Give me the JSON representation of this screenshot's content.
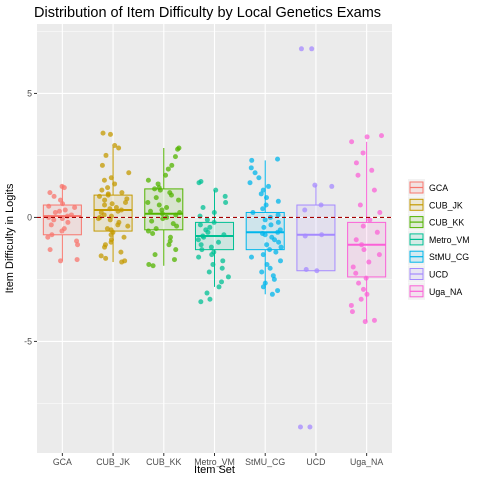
{
  "chart_data": {
    "type": "box",
    "title": "Distribution of Item Difficulty by Local Genetics Exams",
    "xlabel": "Item Set",
    "ylabel": "Item Difficulty in Logits",
    "ylim": [
      -9.5,
      7.8
    ],
    "yticks": [
      -5,
      0,
      5
    ],
    "reference_line": {
      "y": 0,
      "color": "#a50000",
      "style": "dashed"
    },
    "grid": true,
    "legend_position": "right",
    "categories": [
      "GCA",
      "CUB_JK",
      "CUB_KK",
      "Metro_VM",
      "StMU_CG",
      "UCD",
      "Uga_NA"
    ],
    "series": [
      {
        "name": "GCA",
        "color": "#F8766D",
        "box": {
          "min": -1.75,
          "q1": -0.7,
          "median": 0.05,
          "q3": 0.5,
          "max": 1.3
        },
        "points": [
          1.25,
          1.2,
          1.0,
          0.85,
          0.7,
          0.55,
          0.45,
          0.4,
          0.3,
          0.25,
          0.2,
          0.1,
          0.05,
          0.0,
          -0.05,
          -0.1,
          -0.2,
          -0.3,
          -0.45,
          -0.55,
          -0.7,
          -0.8,
          -0.95,
          -1.1,
          -1.3,
          -1.75,
          -1.7
        ]
      },
      {
        "name": "CUB_JK",
        "color": "#C49A00",
        "box": {
          "min": -1.8,
          "q1": -0.55,
          "median": 0.3,
          "q3": 0.9,
          "max": 2.85
        },
        "points": [
          3.4,
          3.35,
          2.9,
          2.8,
          2.5,
          2.1,
          1.8,
          1.6,
          1.5,
          1.35,
          1.2,
          1.1,
          1.0,
          0.95,
          0.9,
          0.85,
          0.75,
          0.7,
          0.6,
          0.55,
          0.5,
          0.4,
          0.35,
          0.3,
          0.25,
          0.2,
          0.1,
          0.05,
          0.0,
          -0.05,
          -0.1,
          -0.2,
          -0.3,
          -0.35,
          -0.45,
          -0.5,
          -0.6,
          -0.7,
          -0.8,
          -0.9,
          -1.0,
          -1.1,
          -1.2,
          -1.4,
          -1.55,
          -1.65,
          -1.8,
          -1.75
        ]
      },
      {
        "name": "CUB_KK",
        "color": "#53B400",
        "box": {
          "min": -1.95,
          "q1": -0.5,
          "median": 0.15,
          "q3": 1.15,
          "max": 2.8
        },
        "points": [
          2.8,
          2.75,
          2.45,
          2.1,
          1.95,
          1.7,
          1.5,
          1.35,
          1.2,
          1.15,
          1.1,
          1.0,
          0.9,
          0.8,
          0.7,
          0.6,
          0.5,
          0.4,
          0.3,
          0.25,
          0.2,
          0.15,
          0.1,
          0.0,
          -0.05,
          -0.15,
          -0.25,
          -0.35,
          -0.45,
          -0.55,
          -0.65,
          -0.8,
          -0.95,
          -1.1,
          -1.3,
          -1.5,
          -1.7,
          -1.95,
          -1.9
        ]
      },
      {
        "name": "Metro_VM",
        "color": "#00C094",
        "box": {
          "min": -2.8,
          "q1": -1.3,
          "median": -0.75,
          "q3": -0.2,
          "max": 1.1
        },
        "points": [
          1.45,
          1.4,
          1.1,
          0.85,
          0.6,
          0.4,
          0.2,
          0.05,
          -0.1,
          -0.2,
          -0.3,
          -0.4,
          -0.5,
          -0.6,
          -0.7,
          -0.75,
          -0.8,
          -0.9,
          -1.0,
          -1.1,
          -1.2,
          -1.3,
          -1.4,
          -1.5,
          -1.6,
          -1.75,
          -1.9,
          -2.05,
          -2.2,
          -2.4,
          -2.6,
          -2.8,
          -3.05,
          -3.3,
          -3.4
        ]
      },
      {
        "name": "StMU_CG",
        "color": "#00B6EB",
        "box": {
          "min": -3.1,
          "q1": -1.3,
          "median": -0.6,
          "q3": 0.2,
          "max": 2.3
        },
        "points": [
          2.35,
          2.3,
          2.0,
          1.8,
          1.6,
          1.4,
          1.25,
          1.1,
          0.95,
          0.8,
          0.65,
          0.5,
          0.35,
          0.2,
          0.1,
          0.0,
          -0.1,
          -0.2,
          -0.3,
          -0.4,
          -0.5,
          -0.6,
          -0.65,
          -0.7,
          -0.8,
          -0.9,
          -1.0,
          -1.1,
          -1.2,
          -1.3,
          -1.4,
          -1.5,
          -1.6,
          -1.75,
          -1.9,
          -2.05,
          -2.2,
          -2.35,
          -2.5,
          -2.65,
          -2.8,
          -2.95,
          -3.1
        ]
      },
      {
        "name": "UCD",
        "color": "#A58AFF",
        "box": {
          "min": -2.15,
          "q1": -2.15,
          "median": -0.7,
          "q3": 0.5,
          "max": 1.3
        },
        "points": [
          6.8,
          6.8,
          1.3,
          1.25,
          0.5,
          0.3,
          -0.7,
          -0.75,
          -2.1,
          -2.15,
          -8.45,
          -8.45
        ]
      },
      {
        "name": "Uga_NA",
        "color": "#FB61D7",
        "box": {
          "min": -4.2,
          "q1": -2.4,
          "median": -1.1,
          "q3": -0.2,
          "max": 3.05
        },
        "points": [
          3.3,
          3.25,
          3.05,
          2.6,
          2.2,
          1.9,
          1.7,
          1.1,
          0.5,
          0.2,
          -0.1,
          -0.35,
          -0.6,
          -0.9,
          -1.1,
          -1.3,
          -1.5,
          -1.8,
          -2.0,
          -2.25,
          -2.45,
          -2.65,
          -2.9,
          -3.1,
          -3.3,
          -3.55,
          -3.8,
          -4.15,
          -4.2
        ]
      }
    ]
  }
}
